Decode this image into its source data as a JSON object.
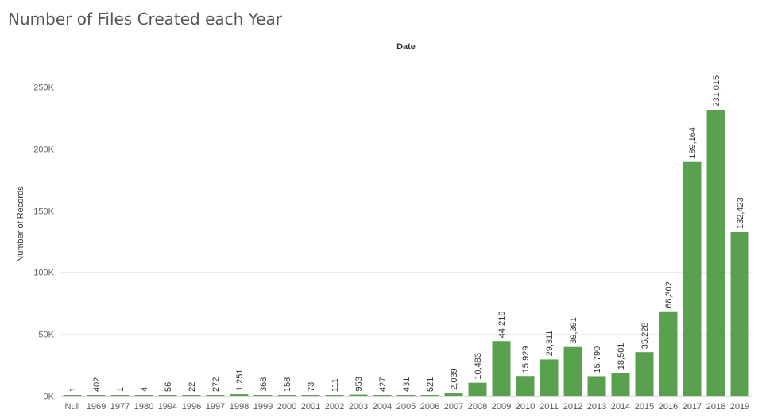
{
  "chart_data": {
    "type": "bar",
    "title": "Number of Files Created each Year",
    "header": "Date",
    "ylabel": "Number of Records",
    "ylim": [
      0,
      270000
    ],
    "yticks": [
      0,
      50000,
      100000,
      150000,
      200000,
      250000
    ],
    "ytick_labels": [
      "0K",
      "50K",
      "100K",
      "150K",
      "200K",
      "250K"
    ],
    "grid": true,
    "bar_color": "#59a14f",
    "categories": [
      "Null",
      "1969",
      "1977",
      "1980",
      "1994",
      "1996",
      "1997",
      "1998",
      "1999",
      "2000",
      "2001",
      "2002",
      "2003",
      "2004",
      "2005",
      "2006",
      "2007",
      "2008",
      "2009",
      "2010",
      "2011",
      "2012",
      "2013",
      "2014",
      "2015",
      "2016",
      "2017",
      "2018",
      "2019"
    ],
    "values": [
      1,
      402,
      1,
      4,
      56,
      22,
      272,
      1251,
      368,
      158,
      73,
      111,
      953,
      427,
      431,
      521,
      2039,
      10483,
      44216,
      15929,
      29311,
      39391,
      15790,
      18501,
      35228,
      68302,
      189164,
      231015,
      132423
    ],
    "value_labels": [
      "1",
      "402",
      "1",
      "4",
      "56",
      "22",
      "272",
      "1,251",
      "368",
      "158",
      "73",
      "111",
      "953",
      "427",
      "431",
      "521",
      "2,039",
      "10,483",
      "44,216",
      "15,929",
      "29,311",
      "39,391",
      "15,790",
      "18,501",
      "35,228",
      "68,302",
      "189,164",
      "231,015",
      "132,423"
    ]
  }
}
